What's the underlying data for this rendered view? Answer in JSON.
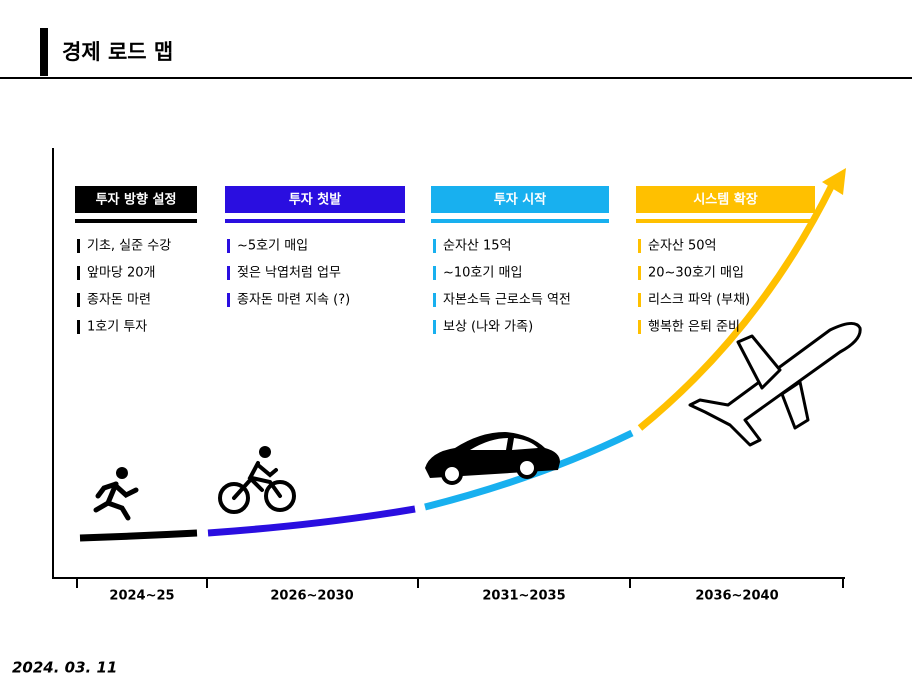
{
  "header": {
    "title": "경제 로드 맵"
  },
  "phases": [
    {
      "title": "투자 방향 설정",
      "items": [
        "기초, 실준 수강",
        "앞마당 20개",
        "종자돈 마련",
        "1호기 투자"
      ],
      "period": "2024~25"
    },
    {
      "title": "투자 첫발",
      "items": [
        "~5호기 매입",
        "젖은 낙엽처럼 업무",
        "종자돈 마련 지속 (?)"
      ],
      "period": "2026~2030"
    },
    {
      "title": "투자 시작",
      "items": [
        "순자산 15억",
        "~10호기 매입",
        "자본소득 근로소득 역전",
        "보상 (나와 가족)"
      ],
      "period": "2031~2035"
    },
    {
      "title": "시스템 확장",
      "items": [
        "순자산 50억",
        "20~30호기 매입",
        "리스크 파악 (부채)",
        "행복한 은퇴 준비"
      ],
      "period": "2036~2040"
    }
  ],
  "footer": {
    "date": "2024. 03. 11"
  }
}
